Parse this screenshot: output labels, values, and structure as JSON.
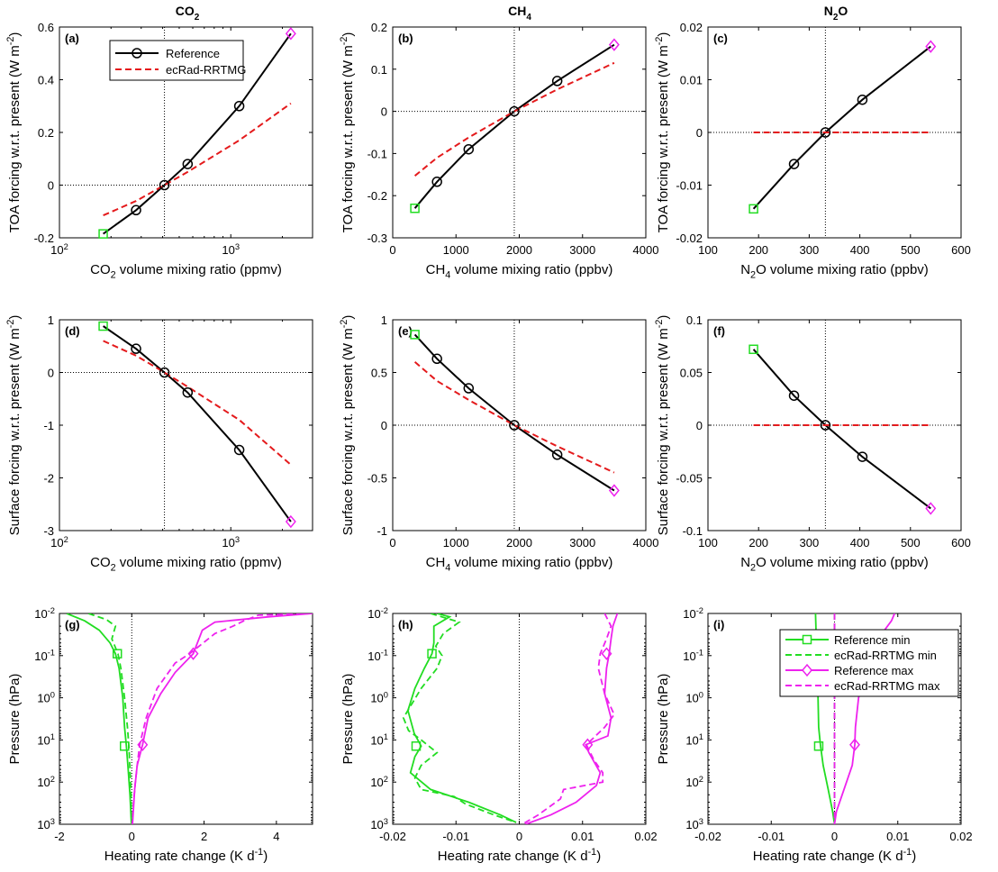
{
  "column_titles": [
    "CO",
    "CH",
    "N"
  ],
  "column_title_subs": [
    "2",
    "4",
    "2"
  ],
  "column_title_tails": [
    "",
    "",
    "O"
  ],
  "colors": {
    "reference": "#000000",
    "ecrad": "#e41a1c",
    "min": "#22dd22",
    "max": "#ee22ee",
    "axis": "#000000"
  },
  "chart_data": [
    {
      "id": "a",
      "type": "line",
      "panel_label": "(a)",
      "xscale": "log",
      "xlim": [
        100,
        3000
      ],
      "ylim": [
        -0.2,
        0.6
      ],
      "xticks": [
        100,
        1000
      ],
      "xticklabels": [
        [
          "10",
          "2"
        ],
        [
          "10",
          "3"
        ]
      ],
      "yticks": [
        -0.2,
        0,
        0.2,
        0.4,
        0.6
      ],
      "yticklabels": [
        "-0.2",
        "0",
        "0.2",
        "0.4",
        "0.6"
      ],
      "xlabel": [
        "CO",
        "2",
        " volume mixing ratio (ppmv)"
      ],
      "ylabel": [
        "TOA forcing w.r.t. present (W m",
        "-2",
        ")"
      ],
      "vline": 410,
      "hline": 0,
      "legend": {
        "location": "top-left",
        "entries": [
          "Reference",
          "ecRad-RRTMG"
        ]
      },
      "reference": {
        "x": [
          180,
          280,
          410,
          560,
          1120,
          2240
        ],
        "y": [
          -0.185,
          -0.095,
          0,
          0.08,
          0.3,
          0.575
        ]
      },
      "ecrad": {
        "x": [
          180,
          280,
          410,
          560,
          1120,
          2240
        ],
        "y": [
          -0.115,
          -0.06,
          0,
          0.05,
          0.17,
          0.31
        ]
      },
      "start_marker": {
        "x": 180,
        "y": -0.185
      },
      "end_marker": {
        "x": 2240,
        "y": 0.575
      }
    },
    {
      "id": "b",
      "type": "line",
      "panel_label": "(b)",
      "xscale": "linear",
      "xlim": [
        0,
        4000
      ],
      "ylim": [
        -0.3,
        0.2
      ],
      "xticks": [
        0,
        1000,
        2000,
        3000,
        4000
      ],
      "xticklabels": [
        "0",
        "1000",
        "2000",
        "3000",
        "4000"
      ],
      "yticks": [
        -0.3,
        -0.2,
        -0.1,
        0,
        0.1,
        0.2
      ],
      "yticklabels": [
        "-0.3",
        "-0.2",
        "-0.1",
        "0",
        "0.1",
        "0.2"
      ],
      "xlabel": [
        "CH",
        "4",
        " volume mixing ratio (ppbv)"
      ],
      "ylabel": [
        "TOA forcing w.r.t. present (W m",
        "-2",
        ")"
      ],
      "vline": 1921,
      "hline": 0,
      "reference": {
        "x": [
          350,
          700,
          1200,
          1921,
          2600,
          3500
        ],
        "y": [
          -0.23,
          -0.167,
          -0.09,
          0,
          0.072,
          0.158
        ]
      },
      "ecrad": {
        "x": [
          350,
          700,
          1200,
          1921,
          2600,
          3500
        ],
        "y": [
          -0.153,
          -0.11,
          -0.062,
          0,
          0.052,
          0.115
        ]
      },
      "start_marker": {
        "x": 350,
        "y": -0.23
      },
      "end_marker": {
        "x": 3500,
        "y": 0.158
      }
    },
    {
      "id": "c",
      "type": "line",
      "panel_label": "(c)",
      "xscale": "linear",
      "xlim": [
        100,
        600
      ],
      "ylim": [
        -0.02,
        0.02
      ],
      "xticks": [
        100,
        200,
        300,
        400,
        500,
        600
      ],
      "xticklabels": [
        "100",
        "200",
        "300",
        "400",
        "500",
        "600"
      ],
      "yticks": [
        -0.02,
        -0.01,
        0,
        0.01,
        0.02
      ],
      "yticklabels": [
        "-0.02",
        "-0.01",
        "0",
        "0.01",
        "0.02"
      ],
      "xlabel": [
        "N",
        "2",
        "O volume mixing ratio (ppbv)"
      ],
      "ylabel": [
        "TOA forcing w.r.t. present (W m",
        "-2",
        ")"
      ],
      "vline": 332,
      "hline": 0,
      "reference": {
        "x": [
          190,
          270,
          332,
          405,
          540
        ],
        "y": [
          -0.0145,
          -0.006,
          0,
          0.0062,
          0.0163
        ]
      },
      "ecrad": {
        "x": [
          190,
          270,
          332,
          405,
          540
        ],
        "y": [
          0,
          0,
          0,
          0,
          0
        ]
      },
      "start_marker": {
        "x": 190,
        "y": -0.0145
      },
      "end_marker": {
        "x": 540,
        "y": 0.0163
      }
    },
    {
      "id": "d",
      "type": "line",
      "panel_label": "(d)",
      "xscale": "log",
      "xlim": [
        100,
        3000
      ],
      "ylim": [
        -3,
        1
      ],
      "xticks": [
        100,
        1000
      ],
      "xticklabels": [
        [
          "10",
          "2"
        ],
        [
          "10",
          "3"
        ]
      ],
      "yticks": [
        -3,
        -2,
        -1,
        0,
        1
      ],
      "yticklabels": [
        "-3",
        "-2",
        "-1",
        "0",
        "1"
      ],
      "xlabel": [
        "CO",
        "2",
        " volume mixing ratio (ppmv)"
      ],
      "ylabel": [
        "Surface forcing w.r.t. present (W m",
        "-2",
        ")"
      ],
      "vline": 410,
      "hline": 0,
      "reference": {
        "x": [
          180,
          280,
          410,
          560,
          1120,
          2240
        ],
        "y": [
          0.88,
          0.45,
          0,
          -0.38,
          -1.47,
          -2.83
        ]
      },
      "ecrad": {
        "x": [
          180,
          280,
          410,
          560,
          1120,
          2240
        ],
        "y": [
          0.6,
          0.32,
          0,
          -0.27,
          -0.9,
          -1.75
        ]
      },
      "start_marker": {
        "x": 180,
        "y": 0.88
      },
      "end_marker": {
        "x": 2240,
        "y": -2.83
      }
    },
    {
      "id": "e",
      "type": "line",
      "panel_label": "(e)",
      "xscale": "linear",
      "xlim": [
        0,
        4000
      ],
      "ylim": [
        -1,
        1
      ],
      "xticks": [
        0,
        1000,
        2000,
        3000,
        4000
      ],
      "xticklabels": [
        "0",
        "1000",
        "2000",
        "3000",
        "4000"
      ],
      "yticks": [
        -1,
        -0.5,
        0,
        0.5,
        1
      ],
      "yticklabels": [
        "-1",
        "-0.5",
        "0",
        "0.5",
        "1"
      ],
      "xlabel": [
        "CH",
        "4",
        " volume mixing ratio (ppbv)"
      ],
      "ylabel": [
        "Surface forcing w.r.t. present (W m",
        "-2",
        ")"
      ],
      "vline": 1921,
      "hline": 0,
      "reference": {
        "x": [
          350,
          700,
          1200,
          1921,
          2600,
          3500
        ],
        "y": [
          0.86,
          0.63,
          0.35,
          0,
          -0.28,
          -0.62
        ]
      },
      "ecrad": {
        "x": [
          350,
          700,
          1200,
          1921,
          2600,
          3500
        ],
        "y": [
          0.6,
          0.42,
          0.24,
          0,
          -0.2,
          -0.45
        ]
      },
      "start_marker": {
        "x": 350,
        "y": 0.86
      },
      "end_marker": {
        "x": 3500,
        "y": -0.62
      }
    },
    {
      "id": "f",
      "type": "line",
      "panel_label": "(f)",
      "xscale": "linear",
      "xlim": [
        100,
        600
      ],
      "ylim": [
        -0.1,
        0.1
      ],
      "xticks": [
        100,
        200,
        300,
        400,
        500,
        600
      ],
      "xticklabels": [
        "100",
        "200",
        "300",
        "400",
        "500",
        "600"
      ],
      "yticks": [
        -0.1,
        -0.05,
        0,
        0.05,
        0.1
      ],
      "yticklabels": [
        "-0.1",
        "-0.05",
        "0",
        "0.05",
        "0.1"
      ],
      "xlabel": [
        "N",
        "2",
        "O volume mixing ratio (ppbv)"
      ],
      "ylabel": [
        "Surface forcing w.r.t. present (W m",
        "-2",
        ")"
      ],
      "vline": 332,
      "hline": 0,
      "reference": {
        "x": [
          190,
          270,
          332,
          405,
          540
        ],
        "y": [
          0.072,
          0.028,
          0,
          -0.03,
          -0.079
        ]
      },
      "ecrad": {
        "x": [
          190,
          270,
          332,
          405,
          540
        ],
        "y": [
          0,
          0,
          0,
          0,
          0
        ]
      },
      "start_marker": {
        "x": 190,
        "y": 0.072
      },
      "end_marker": {
        "x": 540,
        "y": -0.079
      }
    },
    {
      "id": "g",
      "type": "line",
      "panel_label": "(g)",
      "xscale": "linear",
      "yscale": "log",
      "yreverse": true,
      "xlim": [
        -2,
        5
      ],
      "ylim": [
        0.01,
        1000
      ],
      "xticks": [
        -2,
        0,
        2,
        4
      ],
      "xticklabels": [
        "-2",
        "0",
        "2",
        "4"
      ],
      "yticks": [
        0.01,
        0.1,
        1,
        10,
        100,
        1000
      ],
      "yticklabels": [
        [
          "10",
          "-2"
        ],
        [
          "10",
          "-1"
        ],
        [
          "10",
          "0"
        ],
        [
          "10",
          "1"
        ],
        [
          "10",
          "2"
        ],
        [
          "10",
          "3"
        ]
      ],
      "xlabel": [
        "Heating rate change (K d",
        "-1",
        ")"
      ],
      "ylabel": [
        "Pressure (hPa)",
        "",
        ""
      ],
      "vline": 0,
      "ref_min": {
        "x": [
          -1.8,
          -1.3,
          -0.9,
          -0.6,
          -0.45,
          -0.35,
          -0.25,
          -0.2,
          -0.15,
          -0.1,
          -0.05,
          -0.01
        ],
        "y": [
          0.01,
          0.015,
          0.025,
          0.05,
          0.09,
          0.2,
          1,
          5,
          14,
          50,
          200,
          1000
        ]
      },
      "ecrad_min": {
        "x": [
          -1.2,
          -0.7,
          -0.45,
          -0.55,
          -0.38,
          -0.3,
          -0.2,
          -0.12,
          -0.08,
          -0.05,
          -0.02,
          -0.01
        ],
        "y": [
          0.01,
          0.014,
          0.02,
          0.04,
          0.09,
          0.2,
          1,
          5,
          14,
          50,
          200,
          1000
        ]
      },
      "ref_max": {
        "x": [
          5,
          3.8,
          2.3,
          1.95,
          1.7,
          1.2,
          0.8,
          0.45,
          0.3,
          0.15,
          0.08,
          0.02
        ],
        "y": [
          0.01,
          0.012,
          0.016,
          0.025,
          0.09,
          0.25,
          0.8,
          3,
          13,
          40,
          150,
          1000
        ]
      },
      "ecrad_max": {
        "x": [
          5,
          3.5,
          3.1,
          2.8,
          2.3,
          1.6,
          1.2,
          0.7,
          0.4,
          0.22,
          0.15,
          0.1,
          0.05,
          0.01
        ],
        "y": [
          0.01,
          0.011,
          0.015,
          0.02,
          0.03,
          0.09,
          0.15,
          0.6,
          3,
          13,
          40,
          100,
          300,
          1000
        ]
      },
      "min_markers": {
        "x": [
          -0.4,
          -0.2
        ],
        "y": [
          0.09,
          14
        ]
      },
      "max_markers": {
        "x": [
          1.7,
          0.3
        ],
        "y": [
          0.09,
          13
        ]
      }
    },
    {
      "id": "h",
      "type": "line",
      "panel_label": "(h)",
      "xscale": "linear",
      "yscale": "log",
      "yreverse": true,
      "xlim": [
        -0.02,
        0.02
      ],
      "ylim": [
        0.01,
        1000
      ],
      "xticks": [
        -0.02,
        -0.01,
        0,
        0.01,
        0.02
      ],
      "xticklabels": [
        "-0.02",
        "-0.01",
        "0",
        "0.01",
        "0.02"
      ],
      "yticks": [
        0.01,
        0.1,
        1,
        10,
        100,
        1000
      ],
      "yticklabels": [
        [
          "10",
          "-2"
        ],
        [
          "10",
          "-1"
        ],
        [
          "10",
          "0"
        ],
        [
          "10",
          "1"
        ],
        [
          "10",
          "2"
        ],
        [
          "10",
          "3"
        ]
      ],
      "xlabel": [
        "Heating rate change (K d",
        "-1",
        ")"
      ],
      "ylabel": [
        "Pressure (hPa)",
        "",
        ""
      ],
      "vline": 0,
      "ref_min": {
        "x": [
          -0.013,
          -0.011,
          -0.0135,
          -0.0135,
          -0.0138,
          -0.015,
          -0.0165,
          -0.0176,
          -0.0166,
          -0.0155,
          -0.0165,
          -0.0172,
          -0.014,
          -0.008,
          -0.003,
          -0.0005
        ],
        "y": [
          0.01,
          0.012,
          0.02,
          0.05,
          0.09,
          0.2,
          0.6,
          2,
          7,
          14,
          25,
          60,
          150,
          300,
          600,
          900
        ]
      },
      "ecrad_min": {
        "x": [
          -0.014,
          -0.0095,
          -0.012,
          -0.0132,
          -0.0122,
          -0.013,
          -0.0155,
          -0.0183,
          -0.0175,
          -0.0155,
          -0.013,
          -0.0155,
          -0.0165,
          -0.0155,
          -0.0103,
          -0.0085,
          -0.004,
          -0.0005
        ],
        "y": [
          0.01,
          0.016,
          0.03,
          0.06,
          0.1,
          0.2,
          0.6,
          3,
          6,
          10,
          20,
          40,
          80,
          150,
          220,
          330,
          600,
          900
        ]
      },
      "ref_max": {
        "x": [
          0.0155,
          0.0148,
          0.0145,
          0.0142,
          0.0138,
          0.0135,
          0.0145,
          0.014,
          0.0105,
          0.011,
          0.0128,
          0.0122,
          0.009,
          0.005,
          0.001
        ],
        "y": [
          0.01,
          0.02,
          0.04,
          0.09,
          0.2,
          0.8,
          3,
          8,
          13,
          20,
          60,
          120,
          300,
          600,
          1000
        ]
      },
      "ecrad_max": {
        "x": [
          0.0135,
          0.0145,
          0.0138,
          0.0128,
          0.0125,
          0.0135,
          0.015,
          0.0135,
          0.0106,
          0.0118,
          0.0132,
          0.0132,
          0.007,
          0.0065,
          0.003,
          0.0005
        ],
        "y": [
          0.01,
          0.02,
          0.04,
          0.09,
          0.2,
          0.8,
          2.5,
          5,
          13,
          30,
          60,
          100,
          150,
          250,
          600,
          1000
        ]
      },
      "min_markers": {
        "x": [
          -0.0138,
          -0.0163
        ],
        "y": [
          0.09,
          14
        ]
      },
      "max_markers": {
        "x": [
          0.0138,
          0.0108
        ],
        "y": [
          0.09,
          13
        ]
      }
    },
    {
      "id": "i",
      "type": "line",
      "panel_label": "(i)",
      "xscale": "linear",
      "yscale": "log",
      "yreverse": true,
      "xlim": [
        -0.02,
        0.02
      ],
      "ylim": [
        0.01,
        1000
      ],
      "xticks": [
        -0.02,
        -0.01,
        0,
        0.01,
        0.02
      ],
      "xticklabels": [
        "-0.02",
        "-0.01",
        "0",
        "0.01",
        "0.02"
      ],
      "yticks": [
        0.01,
        0.1,
        1,
        10,
        100,
        1000
      ],
      "yticklabels": [
        [
          "10",
          "-2"
        ],
        [
          "10",
          "-1"
        ],
        [
          "10",
          "0"
        ],
        [
          "10",
          "1"
        ],
        [
          "10",
          "2"
        ],
        [
          "10",
          "3"
        ]
      ],
      "xlabel": [
        "Heating rate change (K d",
        "-1",
        ")"
      ],
      "ylabel": [
        "Pressure (hPa)",
        "",
        ""
      ],
      "vline": 0,
      "legend": {
        "location": "top-right",
        "entries": [
          "Reference min",
          "ecRad-RRTMG min",
          "Reference max",
          "ecRad-RRTMG max"
        ]
      },
      "ref_min": {
        "x": [
          -0.003,
          -0.0028,
          -0.0026,
          -0.0025,
          -0.0022,
          -0.0018,
          -0.001,
          -0.0003,
          0
        ],
        "y": [
          0.01,
          0.1,
          1,
          5,
          14,
          40,
          150,
          500,
          1000
        ]
      },
      "ecrad_min": {
        "x": [
          0,
          0,
          0,
          0,
          0,
          0
        ],
        "y": [
          0.01,
          0.1,
          1,
          10,
          100,
          1000
        ]
      },
      "ref_max": {
        "x": [
          0.0095,
          0.009,
          0.0075,
          0.005,
          0.0038,
          0.0033,
          0.0032,
          0.0028,
          0.0015,
          0.0003,
          0
        ],
        "y": [
          0.01,
          0.015,
          0.03,
          0.2,
          1,
          5,
          13,
          40,
          150,
          500,
          1000
        ]
      },
      "ecrad_max": {
        "x": [
          0,
          0,
          0,
          0,
          0,
          0
        ],
        "y": [
          0.01,
          0.1,
          1,
          10,
          100,
          1000
        ]
      },
      "min_markers": {
        "x": [
          -0.0025
        ],
        "y": [
          14
        ]
      },
      "max_markers": {
        "x": [
          0.0032
        ],
        "y": [
          13
        ]
      }
    }
  ]
}
